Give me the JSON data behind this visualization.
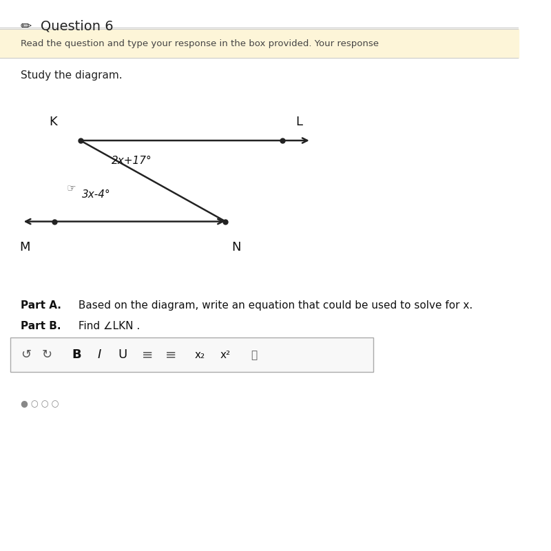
{
  "bg_color": "#ffffff",
  "yellow_bg": "#fdf5d8",
  "title_text": "Question 6",
  "subtitle_text": "Read the question and type your response in the box provided. Your response",
  "study_text": "Study the diagram.",
  "part_a_bold": "Part A.",
  "part_a_rest": " Based on the diagram, write an equation that could be used to solve for x.",
  "part_b_bold": "Part B.",
  "part_b_rest": " Find ∠LKN .",
  "label_K": "K",
  "label_L": "L",
  "label_M": "M",
  "label_N": "N",
  "angle_top": "2x+17°",
  "angle_bottom": "3x-4°",
  "line_color": "#222222",
  "dot_K": [
    0.155,
    0.745
  ],
  "dot_L": [
    0.545,
    0.745
  ],
  "dot_M": [
    0.105,
    0.598
  ],
  "dot_N": [
    0.435,
    0.598
  ]
}
